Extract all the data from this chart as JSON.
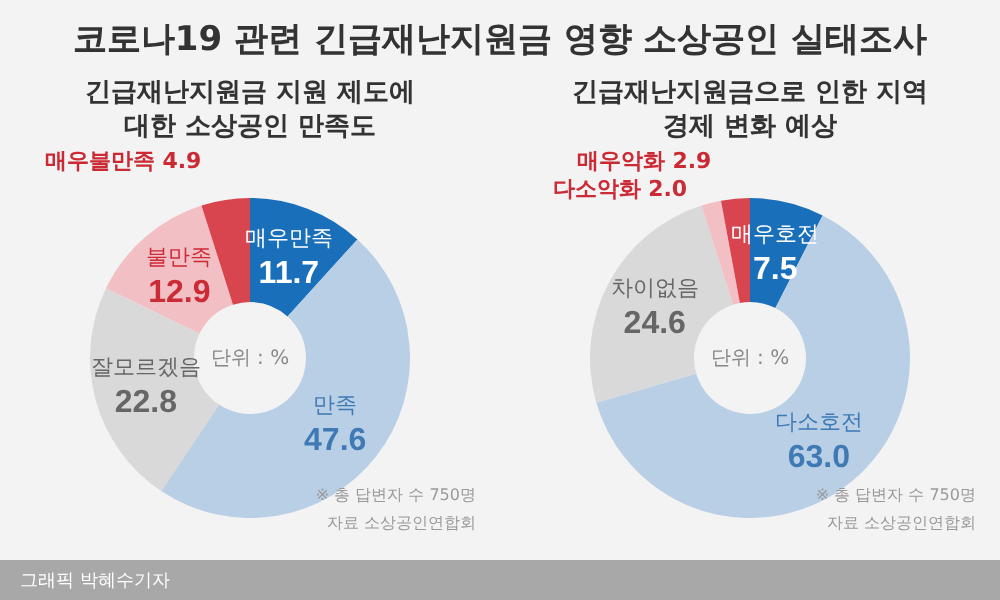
{
  "chart_data": [
    {
      "type": "donut",
      "title": "코로나19 관련 긴급재난지원금 영향 소상공인 실태조사",
      "subtitle": "긴급재난지원금 지원 제도에 대한 소상공인 만족도",
      "categories": [
        "매우만족",
        "만족",
        "잘모르겠음",
        "불만족",
        "매우불만족"
      ],
      "values": [
        11.7,
        47.6,
        22.8,
        12.9,
        4.9
      ],
      "value_labels": [
        "11.7",
        "47.6",
        "22.8",
        "12.9",
        "4.9"
      ],
      "colors": [
        "#1a6fba",
        "#b8cfe6",
        "#d9d9d9",
        "#f2c0c4",
        "#d9454f"
      ],
      "annotations": [
        "단위 : %",
        "※ 총 답변자 수 750명",
        "자료 소상공인연합회",
        "그래픽 박혜수기자"
      ]
    },
    {
      "type": "donut",
      "subtitle": "긴급재난지원금으로 인한 지역경제 변화 예상",
      "categories": [
        "매우호전",
        "다소호전",
        "차이없음",
        "다소악화",
        "매우악화"
      ],
      "values": [
        7.5,
        63.0,
        24.6,
        2.0,
        2.9
      ],
      "value_labels": [
        "7.5",
        "63.0",
        "24.6",
        "2.0",
        "2.9"
      ],
      "colors": [
        "#1a6fba",
        "#b8cfe6",
        "#d9d9d9",
        "#f2c0c4",
        "#d9454f"
      ],
      "annotations": [
        "단위 : %",
        "※ 총 답변자 수 750명",
        "자료 소상공인연합회"
      ]
    }
  ]
}
